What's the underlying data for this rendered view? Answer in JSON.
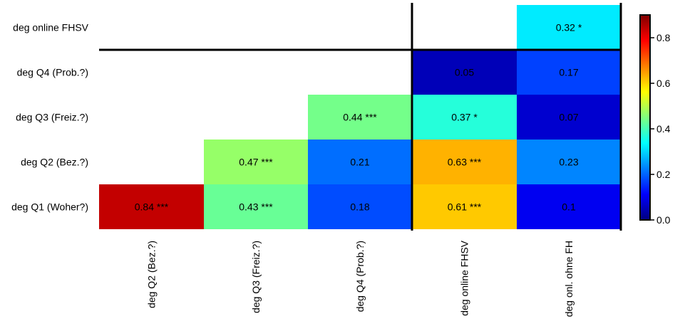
{
  "chart_data": {
    "type": "heatmap",
    "rows": [
      "deg online FHSV",
      "deg Q4 (Prob.?)",
      "deg Q3 (Freiz.?)",
      "deg Q2 (Bez.?)",
      "deg Q1 (Woher?)"
    ],
    "columns": [
      "deg Q2 (Bez.?)",
      "deg Q3 (Freiz.?)",
      "deg Q4 (Prob.?)",
      "deg online FHSV",
      "deg onl. ohne FH"
    ],
    "cells": [
      {
        "row": "deg online FHSV",
        "column": "deg onl. ohne FH",
        "value": 0.32,
        "label": "0.32 *"
      },
      {
        "row": "deg Q4 (Prob.?)",
        "column": "deg online FHSV",
        "value": 0.05,
        "label": "0.05"
      },
      {
        "row": "deg Q4 (Prob.?)",
        "column": "deg onl. ohne FH",
        "value": 0.17,
        "label": "0.17"
      },
      {
        "row": "deg Q3 (Freiz.?)",
        "column": "deg Q4 (Prob.?)",
        "value": 0.44,
        "label": "0.44 ***"
      },
      {
        "row": "deg Q3 (Freiz.?)",
        "column": "deg online FHSV",
        "value": 0.37,
        "label": "0.37 *"
      },
      {
        "row": "deg Q3 (Freiz.?)",
        "column": "deg onl. ohne FH",
        "value": 0.07,
        "label": "0.07"
      },
      {
        "row": "deg Q2 (Bez.?)",
        "column": "deg Q3 (Freiz.?)",
        "value": 0.47,
        "label": "0.47 ***"
      },
      {
        "row": "deg Q2 (Bez.?)",
        "column": "deg Q4 (Prob.?)",
        "value": 0.21,
        "label": "0.21"
      },
      {
        "row": "deg Q2 (Bez.?)",
        "column": "deg online FHSV",
        "value": 0.63,
        "label": "0.63 ***"
      },
      {
        "row": "deg Q2 (Bez.?)",
        "column": "deg onl. ohne FH",
        "value": 0.23,
        "label": "0.23"
      },
      {
        "row": "deg Q1 (Woher?)",
        "column": "deg Q2 (Bez.?)",
        "value": 0.84,
        "label": "0.84 ***"
      },
      {
        "row": "deg Q1 (Woher?)",
        "column": "deg Q3 (Freiz.?)",
        "value": 0.43,
        "label": "0.43 ***"
      },
      {
        "row": "deg Q1 (Woher?)",
        "column": "deg Q4 (Prob.?)",
        "value": 0.18,
        "label": "0.18"
      },
      {
        "row": "deg Q1 (Woher?)",
        "column": "deg online FHSV",
        "value": 0.61,
        "label": "0.61 ***"
      },
      {
        "row": "deg Q1 (Woher?)",
        "column": "deg onl. ohne FH",
        "value": 0.1,
        "label": "0.1"
      }
    ],
    "colorbar": {
      "range": [
        0,
        0.9
      ],
      "ticks": [
        "0.0",
        "0.2",
        "0.4",
        "0.6",
        "0.8"
      ],
      "colormap": "jet",
      "colors": [
        "#00007f",
        "#0000ff",
        "#007fff",
        "#00ffff",
        "#7fff7f",
        "#ffff00",
        "#ff7f00",
        "#ff0000",
        "#7f0000"
      ]
    }
  }
}
